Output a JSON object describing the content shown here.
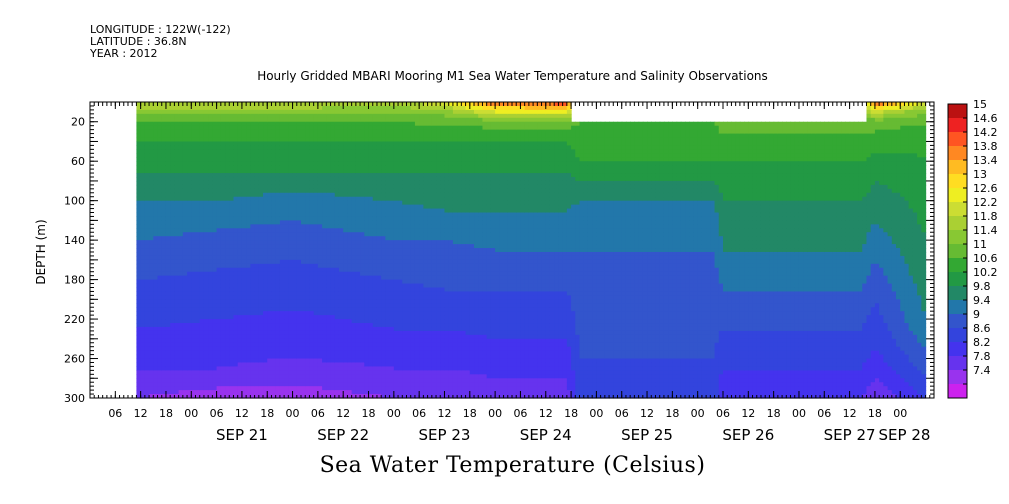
{
  "header": {
    "longitude": "LONGITUDE : 122W(-122)",
    "latitude": "LATITUDE : 36.8N",
    "year": "YEAR : 2012"
  },
  "chart_data": {
    "type": "heatmap",
    "title": "Hourly Gridded MBARI Mooring M1 Sea Water Temperature and Salinity Observations",
    "variable_label": "Sea Water Temperature (Celsius)",
    "ylabel": "DEPTH (m)",
    "yaxis": {
      "min": 0,
      "max": 300,
      "inverted": true,
      "ticks": [
        20,
        60,
        100,
        140,
        180,
        220,
        260,
        300
      ]
    },
    "xaxis": {
      "start": "2012-09-20T00:00",
      "end": "2012-09-28T06:00",
      "hour_ticks": [
        "06",
        "12",
        "18",
        "00",
        "06",
        "12",
        "18",
        "00",
        "06",
        "12",
        "18",
        "00",
        "06",
        "12",
        "18",
        "00",
        "06",
        "12",
        "18",
        "00",
        "06",
        "12",
        "18",
        "00",
        "06",
        "12",
        "18",
        "00",
        "06",
        "12",
        "18",
        "00"
      ],
      "hour_tick_hours": [
        6,
        12,
        18,
        24,
        30,
        36,
        42,
        48,
        54,
        60,
        66,
        72,
        78,
        84,
        90,
        96,
        102,
        108,
        114,
        120,
        126,
        132,
        138,
        144,
        150,
        156,
        162,
        168,
        174,
        180,
        186,
        192
      ],
      "day_labels": [
        "SEP 21",
        "SEP 22",
        "SEP 23",
        "SEP 24",
        "SEP 25",
        "SEP 26",
        "SEP 27",
        "SEP 28"
      ],
      "day_label_hours": [
        36,
        60,
        84,
        108,
        132,
        156,
        180,
        193
      ]
    },
    "colorbar": {
      "levels": [
        7.4,
        7.8,
        8.2,
        8.6,
        9,
        9.4,
        9.8,
        10.2,
        10.6,
        11,
        11.4,
        11.8,
        12.2,
        12.6,
        13,
        13.4,
        13.8,
        14.2,
        14.6,
        15
      ],
      "colors": [
        "#cc22ee",
        "#9933ee",
        "#6633ee",
        "#4433ee",
        "#3344dd",
        "#3355cc",
        "#2277aa",
        "#228866",
        "#229944",
        "#33a833",
        "#66bb33",
        "#88c833",
        "#aad033",
        "#ccdd33",
        "#eeee22",
        "#ffdd22",
        "#ffbb22",
        "#ff8822",
        "#ff5522",
        "#ee2222",
        "#bb1111"
      ],
      "labels": [
        "15",
        "14.6",
        "14.2",
        "13.8",
        "13.4",
        "13",
        "12.6",
        "12.2",
        "11.8",
        "11.4",
        "11",
        "10.6",
        "10.2",
        "9.8",
        "9.4",
        "9",
        "8.6",
        "8.2",
        "7.8",
        "7.4"
      ]
    },
    "data_start_hour": 11,
    "data_end_hour": 198,
    "gap_start_hour": 114,
    "gap_end_hour": 184,
    "gap_min_depth": 20,
    "profiles": [
      {
        "hour": 11,
        "temps": [
          [
            0,
            12.2
          ],
          [
            10,
            11.6
          ],
          [
            20,
            11.0
          ],
          [
            40,
            10.6
          ],
          [
            70,
            10.2
          ],
          [
            100,
            9.8
          ],
          [
            140,
            9.4
          ],
          [
            180,
            9.0
          ],
          [
            230,
            8.6
          ],
          [
            270,
            8.2
          ],
          [
            300,
            7.8
          ]
        ]
      },
      {
        "hour": 30,
        "temps": [
          [
            0,
            12.3
          ],
          [
            10,
            11.5
          ],
          [
            20,
            11.0
          ],
          [
            40,
            10.6
          ],
          [
            70,
            10.2
          ],
          [
            100,
            9.8
          ],
          [
            130,
            9.4
          ],
          [
            170,
            9.0
          ],
          [
            220,
            8.6
          ],
          [
            270,
            8.2
          ],
          [
            300,
            7.6
          ]
        ]
      },
      {
        "hour": 48,
        "temps": [
          [
            0,
            12.2
          ],
          [
            10,
            11.6
          ],
          [
            20,
            11.0
          ],
          [
            40,
            10.6
          ],
          [
            70,
            10.2
          ],
          [
            90,
            9.8
          ],
          [
            120,
            9.4
          ],
          [
            160,
            9.0
          ],
          [
            210,
            8.6
          ],
          [
            260,
            8.2
          ],
          [
            300,
            7.6
          ]
        ]
      },
      {
        "hour": 72,
        "temps": [
          [
            0,
            12.0
          ],
          [
            10,
            11.5
          ],
          [
            20,
            11.0
          ],
          [
            40,
            10.6
          ],
          [
            70,
            10.2
          ],
          [
            100,
            9.8
          ],
          [
            140,
            9.4
          ],
          [
            180,
            9.0
          ],
          [
            230,
            8.6
          ],
          [
            270,
            8.2
          ],
          [
            300,
            7.8
          ]
        ]
      },
      {
        "hour": 84,
        "temps": [
          [
            0,
            12.6
          ],
          [
            10,
            11.6
          ],
          [
            20,
            11.1
          ],
          [
            40,
            10.6
          ],
          [
            70,
            10.2
          ],
          [
            110,
            9.8
          ],
          [
            140,
            9.4
          ],
          [
            190,
            9.0
          ],
          [
            230,
            8.6
          ],
          [
            270,
            8.2
          ],
          [
            300,
            7.8
          ]
        ]
      },
      {
        "hour": 96,
        "temps": [
          [
            0,
            14.4
          ],
          [
            10,
            12.6
          ],
          [
            20,
            11.2
          ],
          [
            40,
            10.6
          ],
          [
            70,
            10.2
          ],
          [
            110,
            9.8
          ],
          [
            150,
            9.4
          ],
          [
            190,
            9.0
          ],
          [
            240,
            8.6
          ],
          [
            280,
            8.2
          ],
          [
            300,
            8.0
          ]
        ]
      },
      {
        "hour": 113,
        "temps": [
          [
            0,
            14.6
          ],
          [
            10,
            12.8
          ],
          [
            20,
            11.2
          ],
          [
            40,
            10.6
          ],
          [
            70,
            10.2
          ],
          [
            110,
            9.8
          ],
          [
            150,
            9.4
          ],
          [
            190,
            9.0
          ],
          [
            240,
            8.6
          ],
          [
            280,
            8.2
          ],
          [
            300,
            8.0
          ]
        ]
      },
      {
        "hour": 116,
        "temps": [
          [
            20,
            11.0
          ],
          [
            40,
            10.8
          ],
          [
            60,
            10.6
          ],
          [
            100,
            9.8
          ],
          [
            150,
            9.4
          ],
          [
            200,
            9.2
          ],
          [
            260,
            9.0
          ],
          [
            300,
            8.8
          ]
        ]
      },
      {
        "hour": 148,
        "temps": [
          [
            20,
            11.0
          ],
          [
            40,
            10.8
          ],
          [
            60,
            10.6
          ],
          [
            100,
            9.8
          ],
          [
            150,
            9.4
          ],
          [
            200,
            9.2
          ],
          [
            260,
            9.0
          ],
          [
            300,
            8.8
          ]
        ]
      },
      {
        "hour": 150,
        "temps": [
          [
            20,
            11.2
          ],
          [
            60,
            10.6
          ],
          [
            100,
            10.2
          ],
          [
            150,
            9.8
          ],
          [
            190,
            9.4
          ],
          [
            230,
            9.0
          ],
          [
            270,
            8.6
          ],
          [
            300,
            8.2
          ]
        ]
      },
      {
        "hour": 183,
        "temps": [
          [
            20,
            11.2
          ],
          [
            60,
            10.6
          ],
          [
            100,
            10.2
          ],
          [
            150,
            9.8
          ],
          [
            190,
            9.4
          ],
          [
            230,
            9.0
          ],
          [
            270,
            8.6
          ],
          [
            300,
            8.2
          ]
        ]
      },
      {
        "hour": 186,
        "temps": [
          [
            0,
            14.6
          ],
          [
            10,
            12.4
          ],
          [
            20,
            11.2
          ],
          [
            50,
            10.6
          ],
          [
            80,
            10.2
          ],
          [
            120,
            9.8
          ],
          [
            160,
            9.4
          ],
          [
            200,
            9.0
          ],
          [
            250,
            8.6
          ],
          [
            280,
            8.2
          ],
          [
            300,
            7.8
          ]
        ]
      },
      {
        "hour": 198,
        "temps": [
          [
            0,
            12.4
          ],
          [
            10,
            11.4
          ],
          [
            30,
            10.8
          ],
          [
            80,
            10.4
          ],
          [
            140,
            10.2
          ],
          [
            220,
            9.8
          ],
          [
            280,
            9.0
          ],
          [
            300,
            8.6
          ]
        ]
      }
    ]
  }
}
